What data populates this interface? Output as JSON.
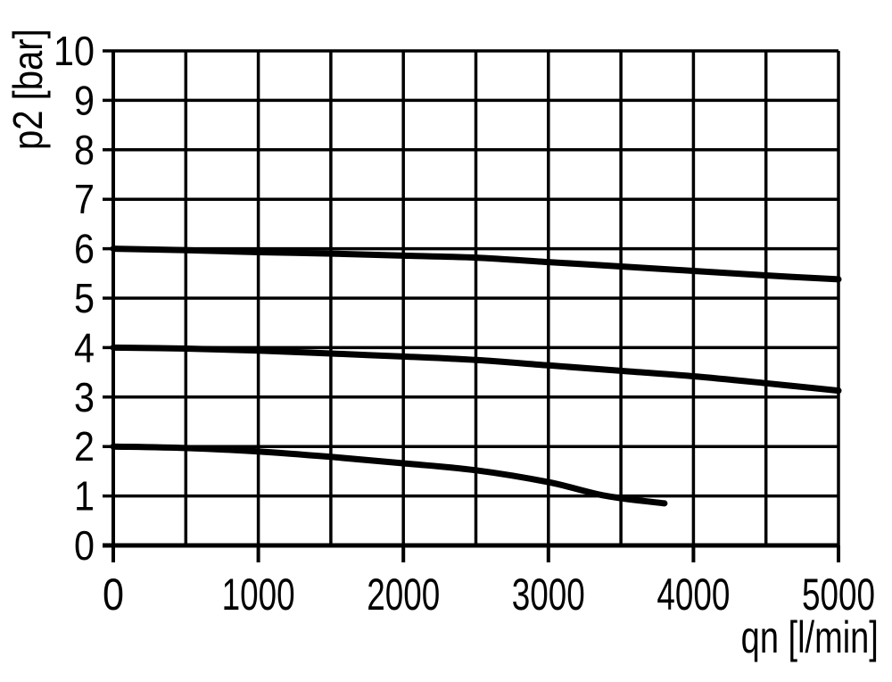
{
  "chart_data": {
    "type": "line",
    "title": "",
    "xlabel": "qn [l/min]",
    "ylabel": "p2 [bar]",
    "xlim": [
      0,
      5000
    ],
    "ylim": [
      0,
      10
    ],
    "x_tick_labels": [
      0,
      1000,
      2000,
      3000,
      4000,
      5000
    ],
    "y_tick_labels": [
      0,
      1,
      2,
      3,
      4,
      5,
      6,
      7,
      8,
      9,
      10
    ],
    "x_grid_step": 500,
    "y_grid_step": 1,
    "grid": "on",
    "legend_position": "none",
    "line_color": "#000000",
    "grid_color": "#000000",
    "background_color": "#ffffff",
    "series": [
      {
        "name": "curve starting at 6 bar",
        "x": [
          0,
          500,
          1000,
          1500,
          2000,
          2500,
          3000,
          3500,
          4000,
          4500,
          5000
        ],
        "y": [
          6.0,
          5.97,
          5.93,
          5.9,
          5.86,
          5.82,
          5.73,
          5.64,
          5.55,
          5.46,
          5.38
        ]
      },
      {
        "name": "curve starting at 4 bar",
        "x": [
          0,
          500,
          1000,
          1500,
          2000,
          2500,
          3000,
          3500,
          4000,
          4500,
          5000
        ],
        "y": [
          4.0,
          3.98,
          3.94,
          3.88,
          3.82,
          3.75,
          3.64,
          3.53,
          3.42,
          3.28,
          3.13
        ]
      },
      {
        "name": "curve starting at 2 bar",
        "x": [
          0,
          500,
          1000,
          1500,
          2000,
          2500,
          3000,
          3400,
          3800
        ],
        "y": [
          2.0,
          1.97,
          1.9,
          1.79,
          1.66,
          1.52,
          1.28,
          1.0,
          0.85
        ]
      }
    ]
  }
}
